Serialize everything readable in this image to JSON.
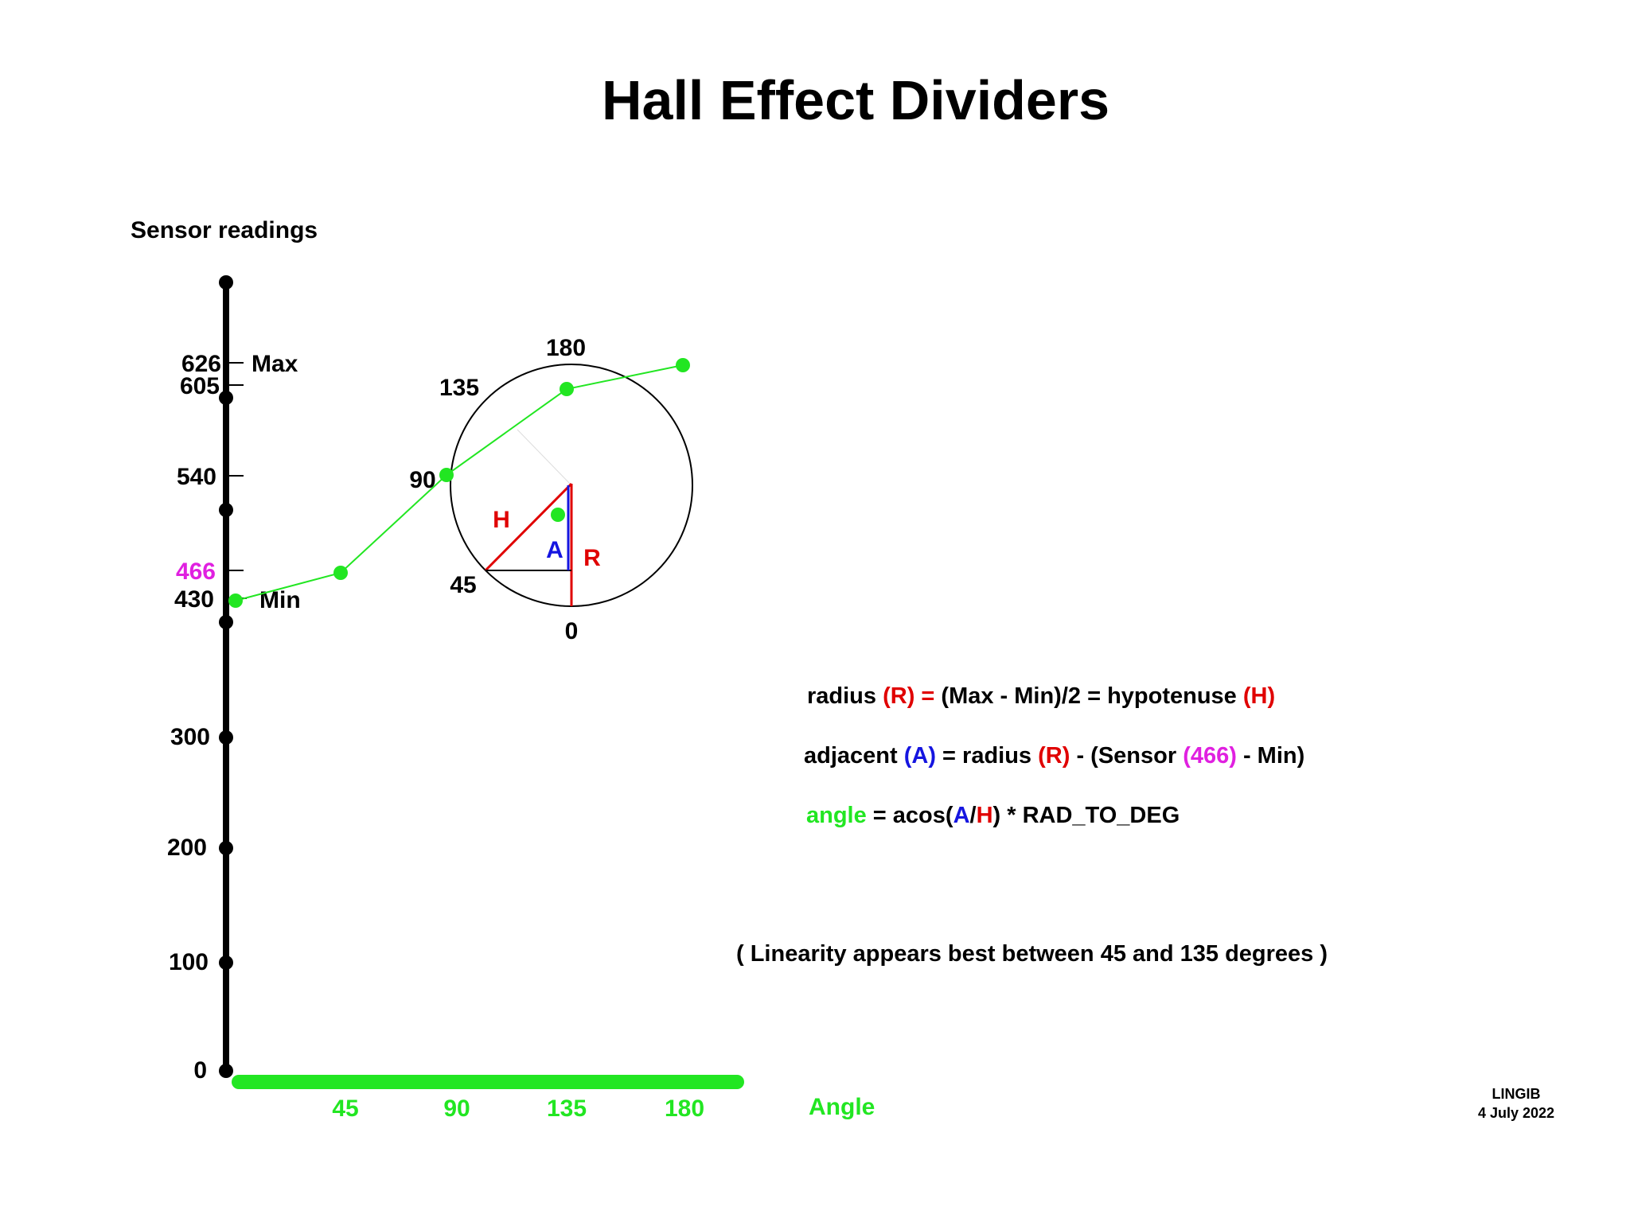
{
  "title": "Hall Effect Dividers",
  "y_axis_label": "Sensor readings",
  "x_axis_label": "Angle",
  "y_ticks": [
    {
      "value": 0,
      "label": "0"
    },
    {
      "value": 100,
      "label": "100"
    },
    {
      "value": 200,
      "label": "200"
    },
    {
      "value": 300,
      "label": "300"
    },
    {
      "value": 430,
      "label": "430",
      "note": "Min"
    },
    {
      "value": 466,
      "label": "466"
    },
    {
      "value": 540,
      "label": "540"
    },
    {
      "value": 605,
      "label": "605"
    },
    {
      "value": 626,
      "label": "626",
      "note": "Max"
    }
  ],
  "x_ticks": [
    "45",
    "90",
    "135",
    "180"
  ],
  "circle_labels": {
    "top": "180",
    "upper_left": "135",
    "left": "90",
    "lower_left": "45",
    "bottom": "0"
  },
  "triangle_labels": {
    "hypotenuse": "H",
    "adjacent": "A",
    "radius": "R"
  },
  "chart_data": {
    "type": "line",
    "x": [
      0,
      45,
      90,
      135,
      180
    ],
    "y": [
      430,
      466,
      540,
      605,
      626
    ],
    "xlabel": "Angle",
    "ylabel": "Sensor readings",
    "series_color": "#22e622"
  },
  "formulas": {
    "line1": [
      {
        "text": "radius ",
        "color": "#000000"
      },
      {
        "text": "(R) = ",
        "color": "#e00000"
      },
      {
        "text": "(Max - Min)/2 = hypotenuse ",
        "color": "#000000"
      },
      {
        "text": "(H)",
        "color": "#e00000"
      }
    ],
    "line2": [
      {
        "text": "adjacent ",
        "color": "#000000"
      },
      {
        "text": "(A)",
        "color": "#1515e0"
      },
      {
        "text": " = radius ",
        "color": "#000000"
      },
      {
        "text": "(R)",
        "color": "#e00000"
      },
      {
        "text": " - (Sensor ",
        "color": "#000000"
      },
      {
        "text": "(466)",
        "color": "#e020e0"
      },
      {
        "text": " - Min)",
        "color": "#000000"
      }
    ],
    "line3": [
      {
        "text": "angle",
        "color": "#22e622"
      },
      {
        "text": " = acos(",
        "color": "#000000"
      },
      {
        "text": "A",
        "color": "#1515e0"
      },
      {
        "text": "/",
        "color": "#000000"
      },
      {
        "text": "H",
        "color": "#e00000"
      },
      {
        "text": ") * RAD_TO_DEG",
        "color": "#000000"
      }
    ]
  },
  "note": "( Linearity appears best between 45 and 135 degrees )",
  "credit": {
    "author": "LINGIB",
    "date": "4 July 2022"
  },
  "colors": {
    "green": "#22e622",
    "red": "#e00000",
    "blue": "#1515e0",
    "magenta": "#e020e0"
  }
}
